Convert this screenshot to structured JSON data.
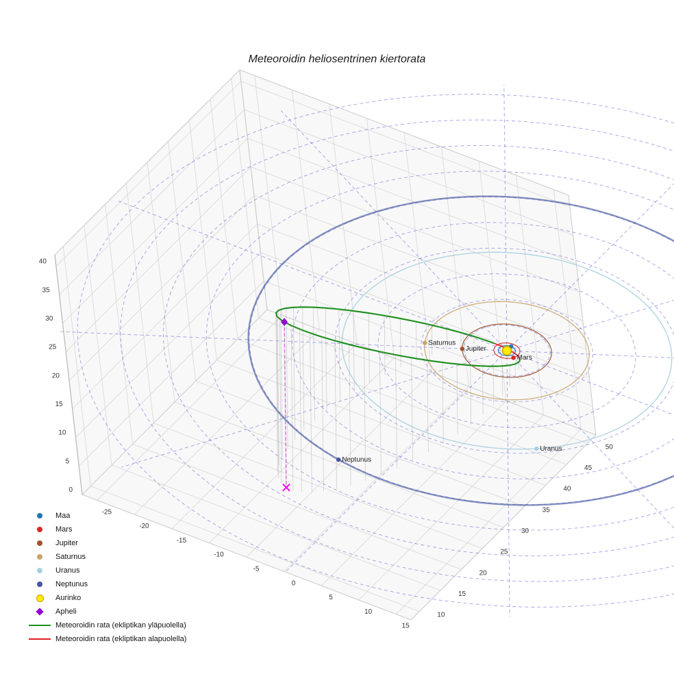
{
  "title": "Meteoroidin heliosentrinen kiertorata",
  "chart_data": {
    "type": "line",
    "projection": "3d",
    "title": "Meteoroidin heliosentrinen kiertorata",
    "axes": {
      "x_ticks": [
        -25,
        -20,
        -15,
        -10,
        -5,
        0,
        5,
        10,
        15
      ],
      "y_ticks": [
        10,
        15,
        20,
        25,
        30,
        35,
        40,
        45,
        50
      ],
      "z_ticks": [
        0,
        5,
        10,
        15,
        20,
        25,
        30,
        35,
        40
      ],
      "xlim": [
        -27,
        17
      ],
      "ylim": [
        8,
        52
      ],
      "zlim": [
        0,
        42
      ],
      "grid": true
    },
    "polar_grid": {
      "ring_radii_au": [
        5,
        10,
        15,
        20,
        25,
        30,
        35,
        40,
        45,
        50
      ],
      "spoke_step_deg": 30,
      "spoke_length_au": 52,
      "color": "#4343d6",
      "opacity": 0.5,
      "style": "dashed"
    },
    "sun": {
      "label": "Aurinko",
      "color": "#ffee00",
      "edge_color": "#cc9900",
      "position_au": [
        0,
        0,
        0
      ]
    },
    "planets": [
      {
        "name": "Maa",
        "color": "#1f77b4",
        "orbit_radius_au": 1.0,
        "marker_angle_deg": 90,
        "labeled_on_plot": false,
        "line_width": 1.2
      },
      {
        "name": "Mars",
        "color": "#d62728",
        "orbit_radius_au": 1.52,
        "marker_angle_deg": -30,
        "labeled_on_plot": true,
        "line_width": 1.2
      },
      {
        "name": "Jupiter",
        "color": "#a0522d",
        "orbit_radius_au": 5.2,
        "marker_angle_deg": 210,
        "labeled_on_plot": true,
        "line_width": 1.3
      },
      {
        "name": "Saturnus",
        "color": "#c9a36a",
        "orbit_radius_au": 9.58,
        "marker_angle_deg": 205,
        "labeled_on_plot": true,
        "line_width": 1.3
      },
      {
        "name": "Uranus",
        "color": "#a7cfe0",
        "orbit_radius_au": 19.2,
        "marker_angle_deg": -50,
        "labeled_on_plot": true,
        "line_width": 1.4
      },
      {
        "name": "Neptunus",
        "color": "#44569e",
        "orbit_radius_au": 30.1,
        "marker_angle_deg": 259,
        "labeled_on_plot": true,
        "line_width": 2.4
      }
    ],
    "meteoroid_orbit": {
      "perihelion_au": 1.0,
      "aphelion_au": 48.3,
      "eccentricity": 0.959,
      "inclination_deg": 37,
      "aphelion_point_au": [
        -8.1,
        -37.7,
        29
      ],
      "above_color": "#1e8f1e",
      "below_color": "#e02020",
      "above_label": "Meteoroidin rata (ekliptikan yläpuolella)",
      "below_label": "Meteoroidin rata (ekliptikan alapuolella)",
      "stem_color": "#9f9f9f"
    },
    "aphelion_marker": {
      "label": "Apheli",
      "color": "#9400d3",
      "drop_line_color": "#cc66cc",
      "drop_marker": "x",
      "drop_marker_color": "#ff00ff"
    },
    "legend_position": "lower-left"
  },
  "legend": {
    "entries": [
      {
        "id": "maa",
        "marker": "dot",
        "color": "#1f77b4",
        "label": "Maa"
      },
      {
        "id": "mars",
        "marker": "dot",
        "color": "#d62728",
        "label": "Mars"
      },
      {
        "id": "jupiter",
        "marker": "dot",
        "color": "#a0522d",
        "label": "Jupiter"
      },
      {
        "id": "saturnus",
        "marker": "dot",
        "color": "#c9a36a",
        "label": "Saturnus"
      },
      {
        "id": "uranus",
        "marker": "dot",
        "color": "#a7cfe0",
        "label": "Uranus"
      },
      {
        "id": "neptunus",
        "marker": "dot",
        "color": "#44569e",
        "label": "Neptunus"
      },
      {
        "id": "aurinko",
        "marker": "circle",
        "color": "#ffee00",
        "edge": "#cc9900",
        "label": "Aurinko"
      },
      {
        "id": "apheli",
        "marker": "diamond",
        "color": "#9400d3",
        "label": "Apheli"
      },
      {
        "id": "rata-yla",
        "marker": "line",
        "color": "#1e8f1e",
        "label": "Meteoroidin rata (ekliptikan yläpuolella)"
      },
      {
        "id": "rata-ala",
        "marker": "line",
        "color": "#e02020",
        "label": "Meteoroidin rata (ekliptikan alapuolella)"
      }
    ]
  }
}
